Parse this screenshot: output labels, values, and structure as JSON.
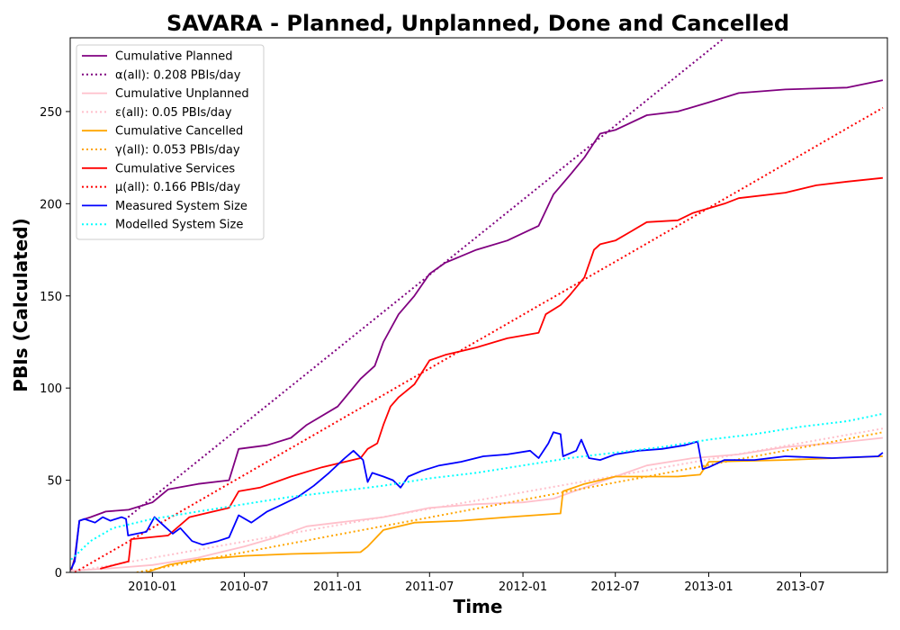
{
  "chart_data": {
    "type": "line",
    "title": "SAVARA - Planned, Unplanned, Done  and Cancelled",
    "xlabel": "Time",
    "ylabel": "PBIs (Calculated)",
    "xlim": [
      "2009-07-23",
      "2013-12-19"
    ],
    "ylim": [
      0,
      290
    ],
    "x_ticks": [
      "2010-01",
      "2010-07",
      "2011-01",
      "2011-07",
      "2012-01",
      "2012-07",
      "2013-01",
      "2013-07"
    ],
    "y_ticks": [
      0,
      50,
      100,
      150,
      200,
      250
    ],
    "grid": false,
    "legend_position": "top-left",
    "series": [
      {
        "name": "Cumulative Planned",
        "color": "#800080",
        "style": "solid",
        "points": [
          [
            "2009-07-25",
            1
          ],
          [
            "2009-08-01",
            8
          ],
          [
            "2009-08-10",
            28
          ],
          [
            "2009-09-01",
            30
          ],
          [
            "2009-10-01",
            33
          ],
          [
            "2009-11-15",
            34
          ],
          [
            "2010-01-01",
            38
          ],
          [
            "2010-02-01",
            45
          ],
          [
            "2010-04-01",
            48
          ],
          [
            "2010-06-01",
            50
          ],
          [
            "2010-06-20",
            67
          ],
          [
            "2010-08-15",
            69
          ],
          [
            "2010-10-01",
            73
          ],
          [
            "2010-11-01",
            80
          ],
          [
            "2011-01-01",
            90
          ],
          [
            "2011-02-15",
            105
          ],
          [
            "2011-03-15",
            112
          ],
          [
            "2011-04-01",
            125
          ],
          [
            "2011-05-01",
            140
          ],
          [
            "2011-06-01",
            150
          ],
          [
            "2011-07-01",
            162
          ],
          [
            "2011-08-01",
            168
          ],
          [
            "2011-10-01",
            175
          ],
          [
            "2011-12-01",
            180
          ],
          [
            "2012-02-01",
            188
          ],
          [
            "2012-03-01",
            205
          ],
          [
            "2012-04-01",
            215
          ],
          [
            "2012-05-01",
            225
          ],
          [
            "2012-06-01",
            238
          ],
          [
            "2012-07-01",
            240
          ],
          [
            "2012-09-01",
            248
          ],
          [
            "2012-11-01",
            250
          ],
          [
            "2013-01-01",
            255
          ],
          [
            "2013-03-01",
            260
          ],
          [
            "2013-06-01",
            262
          ],
          [
            "2013-10-01",
            263
          ],
          [
            "2013-12-10",
            267
          ]
        ]
      },
      {
        "name": "α(all): 0.208 PBIs/day",
        "color": "#800080",
        "style": "dotted",
        "points": [
          [
            "2009-11-14",
            30
          ],
          [
            "2013-02-01",
            290
          ]
        ]
      },
      {
        "name": "Cumulative Unplanned",
        "color": "#ffc0cb",
        "style": "solid",
        "points": [
          [
            "2009-07-25",
            1
          ],
          [
            "2009-10-01",
            2
          ],
          [
            "2010-01-01",
            4
          ],
          [
            "2010-04-01",
            8
          ],
          [
            "2010-07-01",
            14
          ],
          [
            "2010-09-01",
            19
          ],
          [
            "2010-11-01",
            25
          ],
          [
            "2011-01-01",
            27
          ],
          [
            "2011-04-01",
            30
          ],
          [
            "2011-07-01",
            35
          ],
          [
            "2011-10-01",
            37
          ],
          [
            "2012-01-01",
            38
          ],
          [
            "2012-03-01",
            40
          ],
          [
            "2012-05-01",
            46
          ],
          [
            "2012-07-01",
            52
          ],
          [
            "2012-09-01",
            58
          ],
          [
            "2012-12-01",
            62
          ],
          [
            "2013-03-01",
            64
          ],
          [
            "2013-06-01",
            68
          ],
          [
            "2013-09-01",
            70
          ],
          [
            "2013-12-10",
            73
          ]
        ]
      },
      {
        "name": "ε(all): 0.05 PBIs/day",
        "color": "#ffc0cb",
        "style": "dotted",
        "points": [
          [
            "2009-07-23",
            0
          ],
          [
            "2013-12-10",
            78
          ]
        ]
      },
      {
        "name": "Cumulative Cancelled",
        "color": "#ffa500",
        "style": "solid",
        "points": [
          [
            "2009-12-20",
            0
          ],
          [
            "2010-02-01",
            4
          ],
          [
            "2010-04-01",
            7
          ],
          [
            "2010-07-01",
            9
          ],
          [
            "2010-10-01",
            10
          ],
          [
            "2011-02-15",
            11
          ],
          [
            "2011-03-01",
            14
          ],
          [
            "2011-04-01",
            23
          ],
          [
            "2011-06-01",
            27
          ],
          [
            "2011-09-01",
            28
          ],
          [
            "2011-12-01",
            30
          ],
          [
            "2012-03-15",
            32
          ],
          [
            "2012-03-20",
            44
          ],
          [
            "2012-05-01",
            48
          ],
          [
            "2012-07-01",
            52
          ],
          [
            "2012-11-01",
            52
          ],
          [
            "2012-12-15",
            53
          ],
          [
            "2013-01-01",
            60
          ],
          [
            "2013-06-01",
            61
          ],
          [
            "2013-12-10",
            63
          ]
        ]
      },
      {
        "name": "γ(all): 0.053 PBIs/day",
        "color": "#ffa500",
        "style": "dotted",
        "points": [
          [
            "2009-12-01",
            0
          ],
          [
            "2013-12-10",
            76
          ]
        ]
      },
      {
        "name": "Cumulative Services",
        "color": "#ff0000",
        "style": "solid",
        "points": [
          [
            "2009-09-20",
            2
          ],
          [
            "2009-11-15",
            6
          ],
          [
            "2009-11-20",
            18
          ],
          [
            "2010-02-01",
            20
          ],
          [
            "2010-03-15",
            30
          ],
          [
            "2010-06-01",
            35
          ],
          [
            "2010-06-20",
            44
          ],
          [
            "2010-08-01",
            46
          ],
          [
            "2010-10-01",
            52
          ],
          [
            "2010-12-01",
            57
          ],
          [
            "2011-02-15",
            62
          ],
          [
            "2011-03-01",
            67
          ],
          [
            "2011-03-20",
            70
          ],
          [
            "2011-04-01",
            80
          ],
          [
            "2011-04-15",
            90
          ],
          [
            "2011-05-01",
            95
          ],
          [
            "2011-06-01",
            102
          ],
          [
            "2011-07-01",
            115
          ],
          [
            "2011-08-01",
            118
          ],
          [
            "2011-10-01",
            122
          ],
          [
            "2011-12-01",
            127
          ],
          [
            "2012-02-01",
            130
          ],
          [
            "2012-02-15",
            140
          ],
          [
            "2012-03-15",
            145
          ],
          [
            "2012-04-01",
            150
          ],
          [
            "2012-05-01",
            160
          ],
          [
            "2012-05-20",
            175
          ],
          [
            "2012-06-01",
            178
          ],
          [
            "2012-07-01",
            180
          ],
          [
            "2012-08-01",
            185
          ],
          [
            "2012-09-01",
            190
          ],
          [
            "2012-11-01",
            191
          ],
          [
            "2012-12-01",
            195
          ],
          [
            "2013-02-01",
            200
          ],
          [
            "2013-03-01",
            203
          ],
          [
            "2013-06-01",
            206
          ],
          [
            "2013-08-01",
            210
          ],
          [
            "2013-10-01",
            212
          ],
          [
            "2013-12-10",
            214
          ]
        ]
      },
      {
        "name": "μ(all): 0.166 PBIs/day",
        "color": "#ff0000",
        "style": "dotted",
        "points": [
          [
            "2009-08-01",
            0
          ],
          [
            "2013-12-10",
            252
          ]
        ]
      },
      {
        "name": "Measured System Size",
        "color": "#0000ff",
        "style": "solid",
        "points": [
          [
            "2009-07-25",
            2
          ],
          [
            "2009-08-01",
            6
          ],
          [
            "2009-08-10",
            28
          ],
          [
            "2009-08-20",
            29
          ],
          [
            "2009-09-10",
            27
          ],
          [
            "2009-09-25",
            30
          ],
          [
            "2009-10-10",
            28
          ],
          [
            "2009-11-01",
            30
          ],
          [
            "2009-11-10",
            29
          ],
          [
            "2009-11-14",
            20
          ],
          [
            "2009-12-01",
            21
          ],
          [
            "2009-12-20",
            22
          ],
          [
            "2010-01-05",
            30
          ],
          [
            "2010-01-25",
            25
          ],
          [
            "2010-02-10",
            21
          ],
          [
            "2010-02-25",
            24
          ],
          [
            "2010-03-20",
            17
          ],
          [
            "2010-04-10",
            15
          ],
          [
            "2010-05-10",
            17
          ],
          [
            "2010-06-01",
            19
          ],
          [
            "2010-06-20",
            31
          ],
          [
            "2010-07-15",
            27
          ],
          [
            "2010-08-15",
            33
          ],
          [
            "2010-09-15",
            37
          ],
          [
            "2010-10-15",
            41
          ],
          [
            "2010-11-15",
            47
          ],
          [
            "2010-12-15",
            54
          ],
          [
            "2011-01-15",
            62
          ],
          [
            "2011-02-01",
            66
          ],
          [
            "2011-02-20",
            61
          ],
          [
            "2011-03-01",
            49
          ],
          [
            "2011-03-10",
            54
          ],
          [
            "2011-04-01",
            52
          ],
          [
            "2011-04-20",
            50
          ],
          [
            "2011-05-05",
            46
          ],
          [
            "2011-05-20",
            52
          ],
          [
            "2011-06-15",
            55
          ],
          [
            "2011-07-20",
            58
          ],
          [
            "2011-09-01",
            60
          ],
          [
            "2011-10-15",
            63
          ],
          [
            "2011-12-01",
            64
          ],
          [
            "2012-01-15",
            66
          ],
          [
            "2012-02-01",
            62
          ],
          [
            "2012-02-20",
            70
          ],
          [
            "2012-03-01",
            76
          ],
          [
            "2012-03-15",
            75
          ],
          [
            "2012-03-20",
            63
          ],
          [
            "2012-04-15",
            66
          ],
          [
            "2012-04-25",
            72
          ],
          [
            "2012-05-10",
            62
          ],
          [
            "2012-06-01",
            61
          ],
          [
            "2012-07-01",
            64
          ],
          [
            "2012-08-15",
            66
          ],
          [
            "2012-10-01",
            67
          ],
          [
            "2012-11-15",
            69
          ],
          [
            "2012-12-10",
            71
          ],
          [
            "2012-12-20",
            56
          ],
          [
            "2013-01-01",
            57
          ],
          [
            "2013-02-01",
            61
          ],
          [
            "2013-04-01",
            61
          ],
          [
            "2013-06-01",
            63
          ],
          [
            "2013-09-01",
            62
          ],
          [
            "2013-12-01",
            63
          ],
          [
            "2013-12-10",
            65
          ]
        ]
      },
      {
        "name": "Modelled System Size",
        "color": "#00ffff",
        "style": "dotted",
        "points": [
          [
            "2009-07-25",
            7
          ],
          [
            "2009-09-01",
            17
          ],
          [
            "2009-10-15",
            24
          ],
          [
            "2010-01-01",
            29
          ],
          [
            "2010-04-01",
            33
          ],
          [
            "2010-07-01",
            37
          ],
          [
            "2010-10-01",
            41
          ],
          [
            "2011-01-01",
            44
          ],
          [
            "2011-04-01",
            47
          ],
          [
            "2011-07-01",
            51
          ],
          [
            "2011-10-01",
            54
          ],
          [
            "2012-01-01",
            58
          ],
          [
            "2012-04-01",
            62
          ],
          [
            "2012-07-01",
            65
          ],
          [
            "2012-10-01",
            68
          ],
          [
            "2013-01-01",
            72
          ],
          [
            "2013-04-01",
            75
          ],
          [
            "2013-07-01",
            79
          ],
          [
            "2013-10-01",
            82
          ],
          [
            "2013-12-10",
            86
          ]
        ]
      }
    ]
  }
}
